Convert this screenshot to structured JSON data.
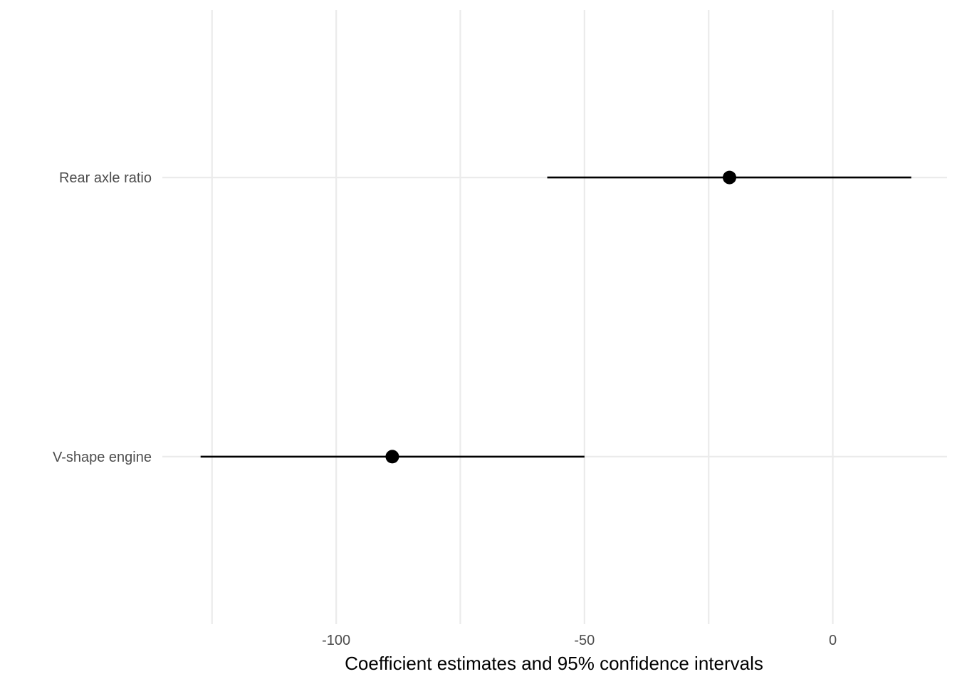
{
  "chart_data": {
    "type": "scatter",
    "xlabel": "Coefficient estimates and 95% confidence intervals",
    "ylabel": "",
    "title": "",
    "xlim": [
      -135,
      23
    ],
    "x_ticks": [
      -100,
      -50,
      0
    ],
    "x_tick_labels": [
      "-100",
      "-50",
      "0"
    ],
    "x_minor_ticks": [
      -125,
      -75,
      -25
    ],
    "grid": true,
    "categories": [
      "Rear axle ratio",
      "V-shape engine"
    ],
    "points": [
      {
        "label": "Rear axle ratio",
        "estimate": -20.8,
        "ci_low": -57.5,
        "ci_high": 15.8
      },
      {
        "label": "V-shape engine",
        "estimate": -88.7,
        "ci_low": -127.3,
        "ci_high": -50.0
      }
    ],
    "colors": {
      "grid": "#ebebeb",
      "mark": "#000000",
      "tick_text": "#4d4d4d"
    }
  }
}
